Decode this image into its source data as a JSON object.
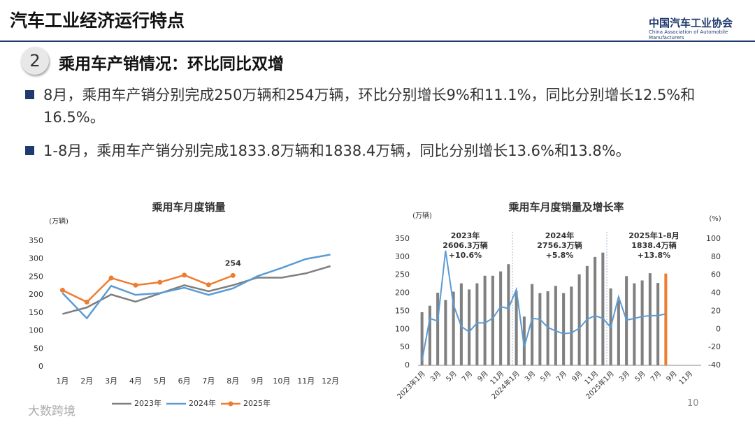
{
  "title": "汽车工业经济运行特点",
  "logo": {
    "name": "中国汽车工业协会",
    "english": "China Association of Automobile Manufacturers"
  },
  "section": {
    "number": "2",
    "title": "乘用车产销情况：环比同比双增"
  },
  "bullets": [
    "8月，乘用车产销分别完成250万辆和254万辆，环比分别增长9%和11.1%，同比分别增长12.5%和16.5%。",
    "1-8月，乘用车产销分别完成1833.8万辆和1838.4万辆，同比分别增长13.6%和13.8%。"
  ],
  "page_number": "10",
  "watermark": "大数跨境",
  "chart_data": [
    {
      "type": "line",
      "title": "乘用车月度销量",
      "y_unit": "(万辆)",
      "categories": [
        "1月",
        "2月",
        "3月",
        "4月",
        "5月",
        "6月",
        "7月",
        "8月",
        "9月",
        "10月",
        "11月",
        "12月"
      ],
      "ylim": [
        0,
        350
      ],
      "yticks": [
        0,
        50,
        100,
        150,
        200,
        250,
        300,
        350
      ],
      "legend": "bottom",
      "series": [
        {
          "name": "2023年",
          "color": "#7f7f7f",
          "markers": false,
          "values": [
            147,
            165,
            201,
            181,
            204,
            227,
            210,
            227,
            248,
            248,
            260,
            280
          ]
        },
        {
          "name": "2024年",
          "color": "#5b9bd5",
          "markers": false,
          "values": [
            205,
            135,
            225,
            200,
            205,
            220,
            200,
            218,
            252,
            275,
            300,
            312
          ]
        },
        {
          "name": "2025年",
          "color": "#ed7d31",
          "markers": true,
          "values": [
            213,
            180,
            247,
            227,
            235,
            255,
            228,
            254,
            null,
            null,
            null,
            null
          ],
          "labeled_index": 7
        }
      ]
    },
    {
      "type": "bar_line",
      "title": "乘用车月度销量及增长率",
      "y_unit": "(万辆)",
      "y2_unit": "(%)",
      "categories": [
        "2023年1月",
        null,
        "3月",
        null,
        "5月",
        null,
        "7月",
        null,
        "9月",
        null,
        "11月",
        null,
        "2024年1月",
        null,
        "3月",
        null,
        "5月",
        null,
        "7月",
        null,
        "9月",
        null,
        "11月",
        null,
        "2025年1月",
        null,
        "3月",
        null,
        "5月",
        null,
        "7月",
        null,
        "9月",
        null,
        "11月",
        null
      ],
      "ylim": [
        0,
        350
      ],
      "yticks": [
        0,
        50,
        100,
        150,
        200,
        250,
        300,
        350
      ],
      "y2lim": [
        -40,
        100
      ],
      "y2ticks": [
        -40,
        -20,
        0,
        20,
        40,
        60,
        80,
        100
      ],
      "annotations": [
        [
          "2023年",
          "2606.3万辆",
          "+10.6%"
        ],
        [
          "2024年",
          "2756.3万辆",
          "+5.8%"
        ],
        [
          "2025年1-8月",
          "1838.4万辆",
          "+13.8%"
        ]
      ],
      "series": [
        {
          "type": "bar",
          "color": "#808080",
          "highlight_color": "#ed7d31",
          "highlight_index": 31,
          "values": [
            147,
            165,
            201,
            181,
            204,
            227,
            210,
            227,
            248,
            248,
            260,
            280,
            205,
            135,
            225,
            200,
            205,
            220,
            200,
            218,
            252,
            275,
            300,
            312,
            213,
            180,
            247,
            227,
            235,
            255,
            228,
            254,
            null,
            null,
            null,
            null
          ]
        },
        {
          "type": "line",
          "axis": "y2",
          "color": "#5b9bd5",
          "values": [
            -35,
            12,
            9,
            87,
            27,
            3,
            -3,
            7,
            7,
            12,
            25,
            23,
            44,
            -20,
            12,
            11,
            2,
            -2,
            -5,
            -4,
            1,
            11,
            15,
            12,
            2,
            36,
            10,
            12,
            14,
            15,
            15,
            17,
            null,
            null,
            null,
            null
          ]
        }
      ]
    }
  ]
}
